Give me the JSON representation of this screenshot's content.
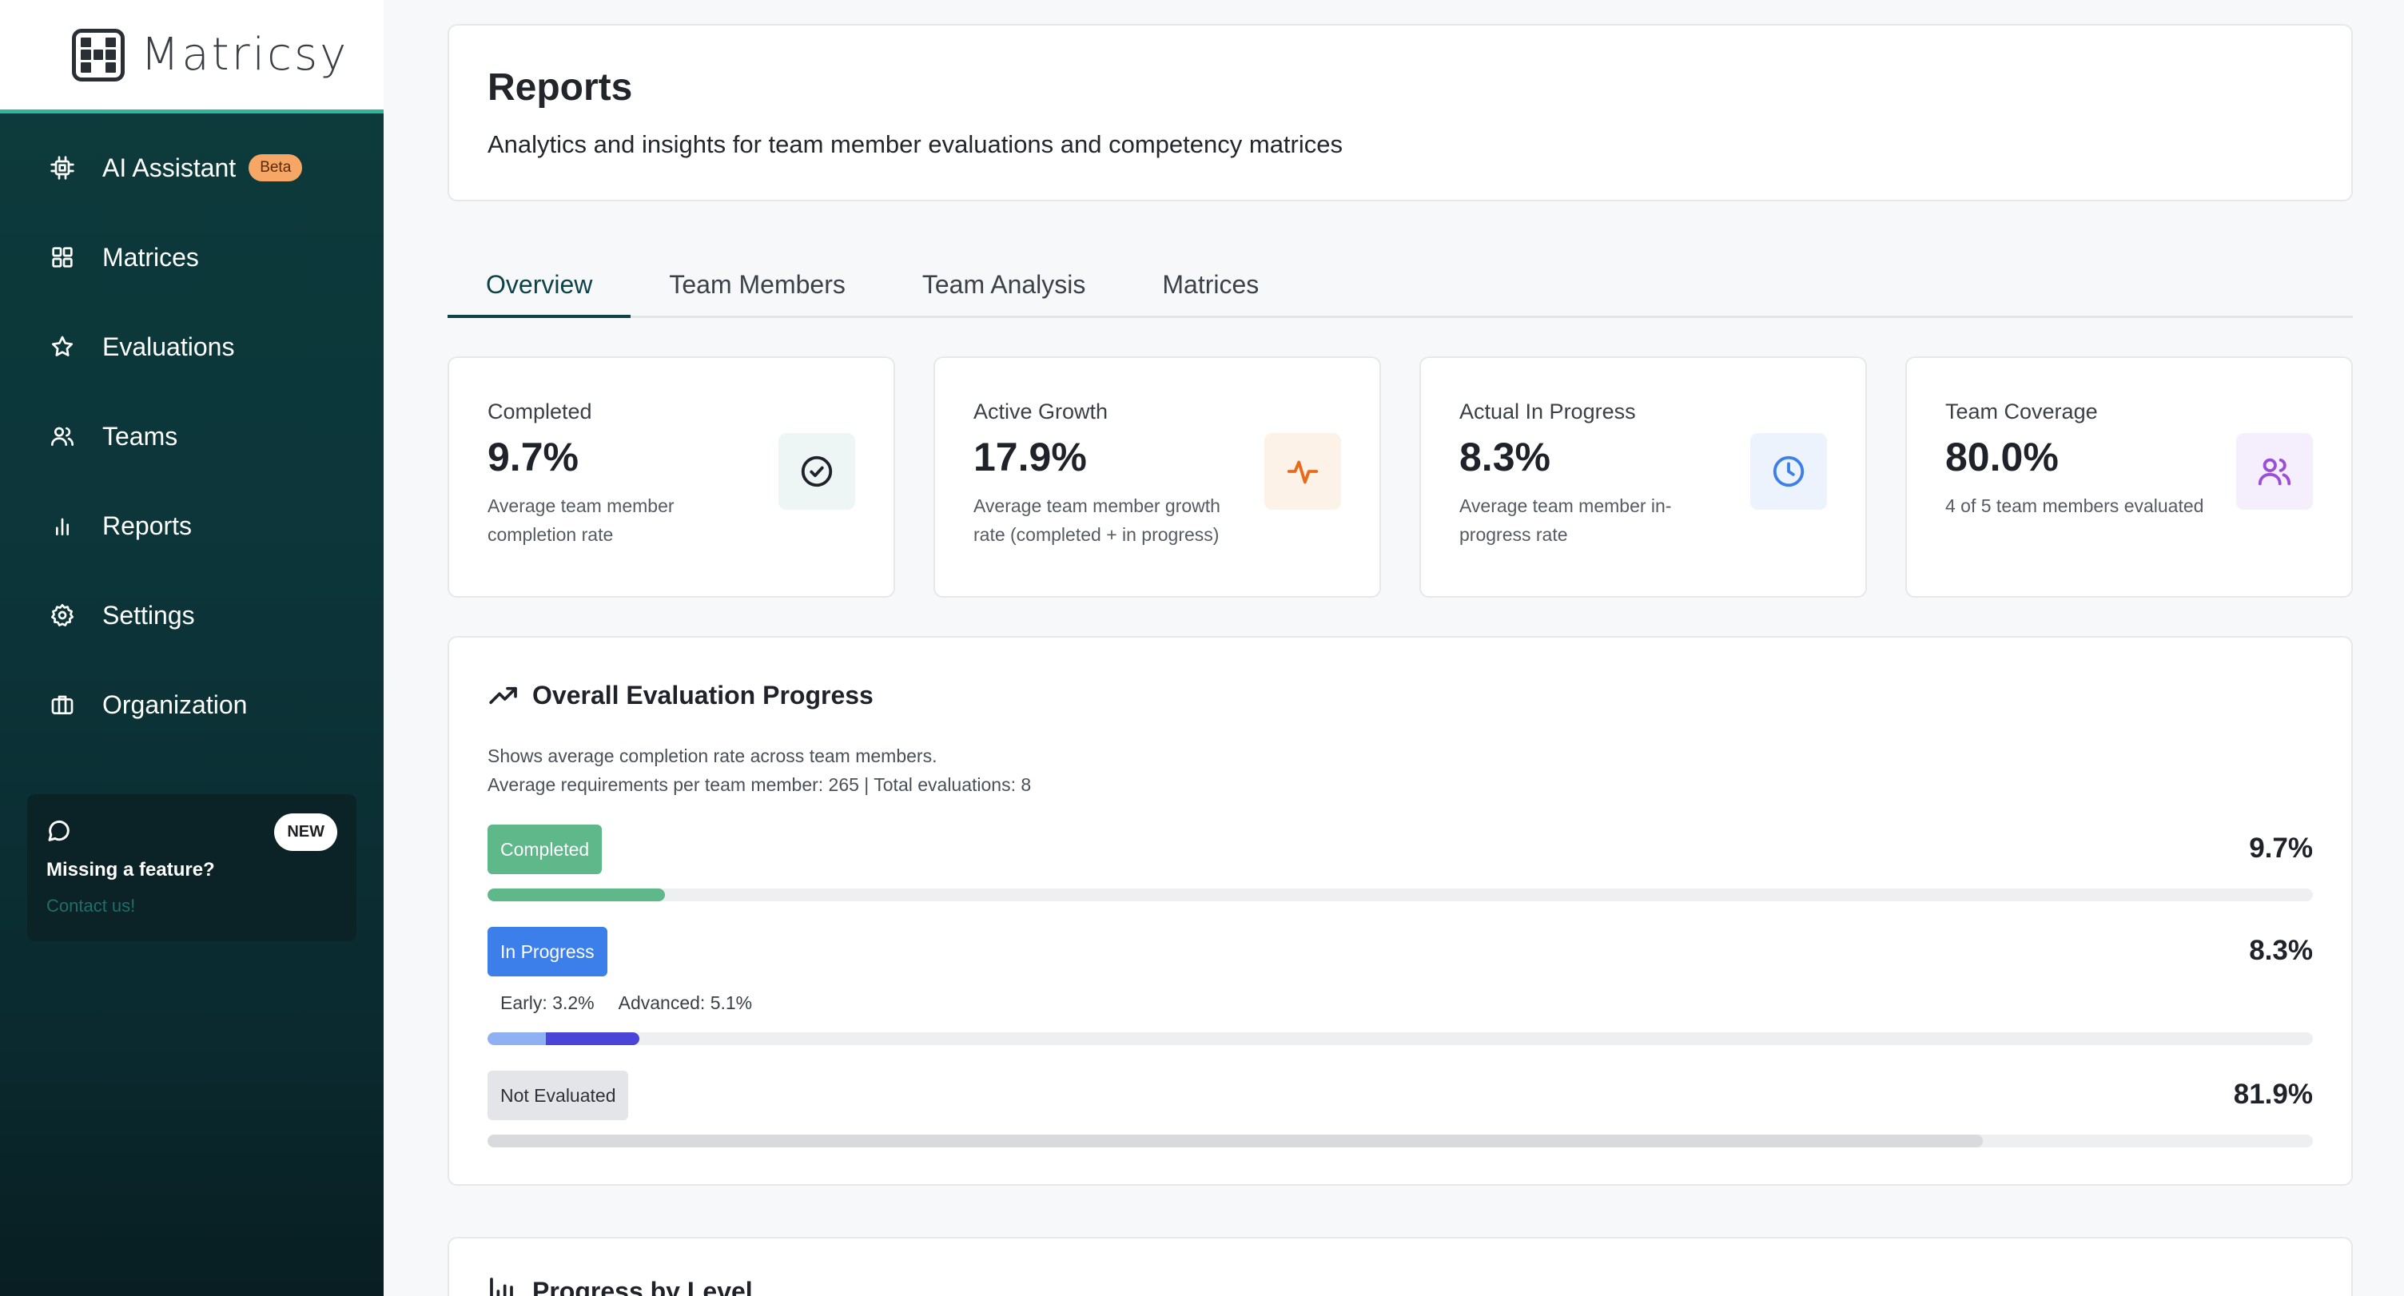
{
  "brand": {
    "name": "Matricsy"
  },
  "sidebar": {
    "items": [
      {
        "label": "AI Assistant",
        "badge": "Beta",
        "icon": "cpu-icon"
      },
      {
        "label": "Matrices",
        "icon": "grid-icon"
      },
      {
        "label": "Evaluations",
        "icon": "star-icon"
      },
      {
        "label": "Teams",
        "icon": "users-icon"
      },
      {
        "label": "Reports",
        "icon": "bar-chart-icon"
      },
      {
        "label": "Settings",
        "icon": "gear-icon"
      },
      {
        "label": "Organization",
        "icon": "briefcase-icon"
      }
    ],
    "feature_card": {
      "badge": "NEW",
      "title": "Missing a feature?",
      "link": "Contact us!"
    }
  },
  "header": {
    "title": "Reports",
    "subtitle": "Analytics and insights for team member evaluations and competency matrices"
  },
  "tabs": [
    {
      "label": "Overview",
      "active": true
    },
    {
      "label": "Team Members",
      "active": false
    },
    {
      "label": "Team Analysis",
      "active": false
    },
    {
      "label": "Matrices",
      "active": false
    }
  ],
  "stats": [
    {
      "label": "Completed",
      "value": "9.7%",
      "desc": "Average team member completion rate",
      "icon": "check-circle-icon",
      "color": "#1f2329",
      "bg": "#eef6f5"
    },
    {
      "label": "Active Growth",
      "value": "17.9%",
      "desc": "Average team member growth rate (completed + in progress)",
      "icon": "activity-icon",
      "color": "#ea6a1c",
      "bg": "#fdf2e8"
    },
    {
      "label": "Actual In Progress",
      "value": "8.3%",
      "desc": "Average team member in-progress rate",
      "icon": "clock-icon",
      "color": "#3d7fea",
      "bg": "#ecf3fd"
    },
    {
      "label": "Team Coverage",
      "value": "80.0%",
      "desc": "4 of 5 team members evaluated",
      "icon": "users-icon",
      "color": "#9b4fd8",
      "bg": "#f5eefc"
    }
  ],
  "progress": {
    "title": "Overall Evaluation Progress",
    "desc_line1": "Shows average completion rate across team members.",
    "desc_line2": "Average requirements per team member: 265 | Total evaluations: 8",
    "completed": {
      "label": "Completed",
      "value": "9.7%",
      "fraction": 0.097,
      "color": "#5fb88a"
    },
    "in_progress": {
      "label": "In Progress",
      "value": "8.3%",
      "fraction": 0.083,
      "early_label": "Early: 3.2%",
      "early_fraction": 0.032,
      "early_color": "#8fb1f3",
      "advanced_label": "Advanced: 5.1%",
      "advanced_fraction": 0.051,
      "advanced_color": "#4a45d6"
    },
    "not_evaluated": {
      "label": "Not Evaluated",
      "value": "81.9%",
      "fraction": 0.819,
      "color": "#d9dadd"
    }
  },
  "next_section": {
    "title": "Progress by Level"
  }
}
